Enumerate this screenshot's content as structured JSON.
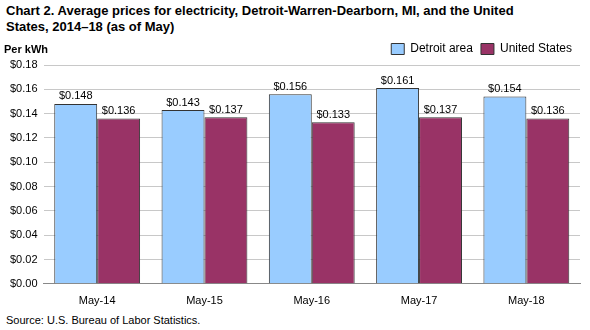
{
  "chart_data": {
    "type": "bar",
    "title": [
      "Chart 2. Average prices for electricity, Detroit-Warren-Dearborn, MI, and the United",
      "States, 2014–18  (as of May)"
    ],
    "ylabel": "Per kWh",
    "source": "Source: U.S. Bureau of Labor Statistics.",
    "categories": [
      "May-14",
      "May-15",
      "May-16",
      "May-17",
      "May-18"
    ],
    "series": [
      {
        "name": "Detroit area",
        "color": "#99ccff",
        "values": [
          0.148,
          0.143,
          0.156,
          0.161,
          0.154
        ],
        "value_labels": [
          "$0.148",
          "$0.143",
          "$0.156",
          "$0.161",
          "$0.154"
        ]
      },
      {
        "name": "United States",
        "color": "#993366",
        "values": [
          0.136,
          0.137,
          0.133,
          0.137,
          0.136
        ],
        "value_labels": [
          "$0.136",
          "$0.137",
          "$0.133",
          "$0.137",
          "$0.136"
        ]
      }
    ],
    "ylim": [
      0,
      0.18
    ],
    "yticks": [
      {
        "value": 0,
        "label": "$0.00"
      },
      {
        "value": 0.02,
        "label": "$0.02"
      },
      {
        "value": 0.04,
        "label": "$0.04"
      },
      {
        "value": 0.06,
        "label": "$0.06"
      },
      {
        "value": 0.08,
        "label": "$0.08"
      },
      {
        "value": 0.1,
        "label": "$0.10"
      },
      {
        "value": 0.12,
        "label": "$0.12"
      },
      {
        "value": 0.14,
        "label": "$0.14"
      },
      {
        "value": 0.16,
        "label": "$0.16"
      },
      {
        "value": 0.18,
        "label": "$0.18"
      }
    ],
    "grid": true,
    "legend": "top-right",
    "data_labels": true
  }
}
